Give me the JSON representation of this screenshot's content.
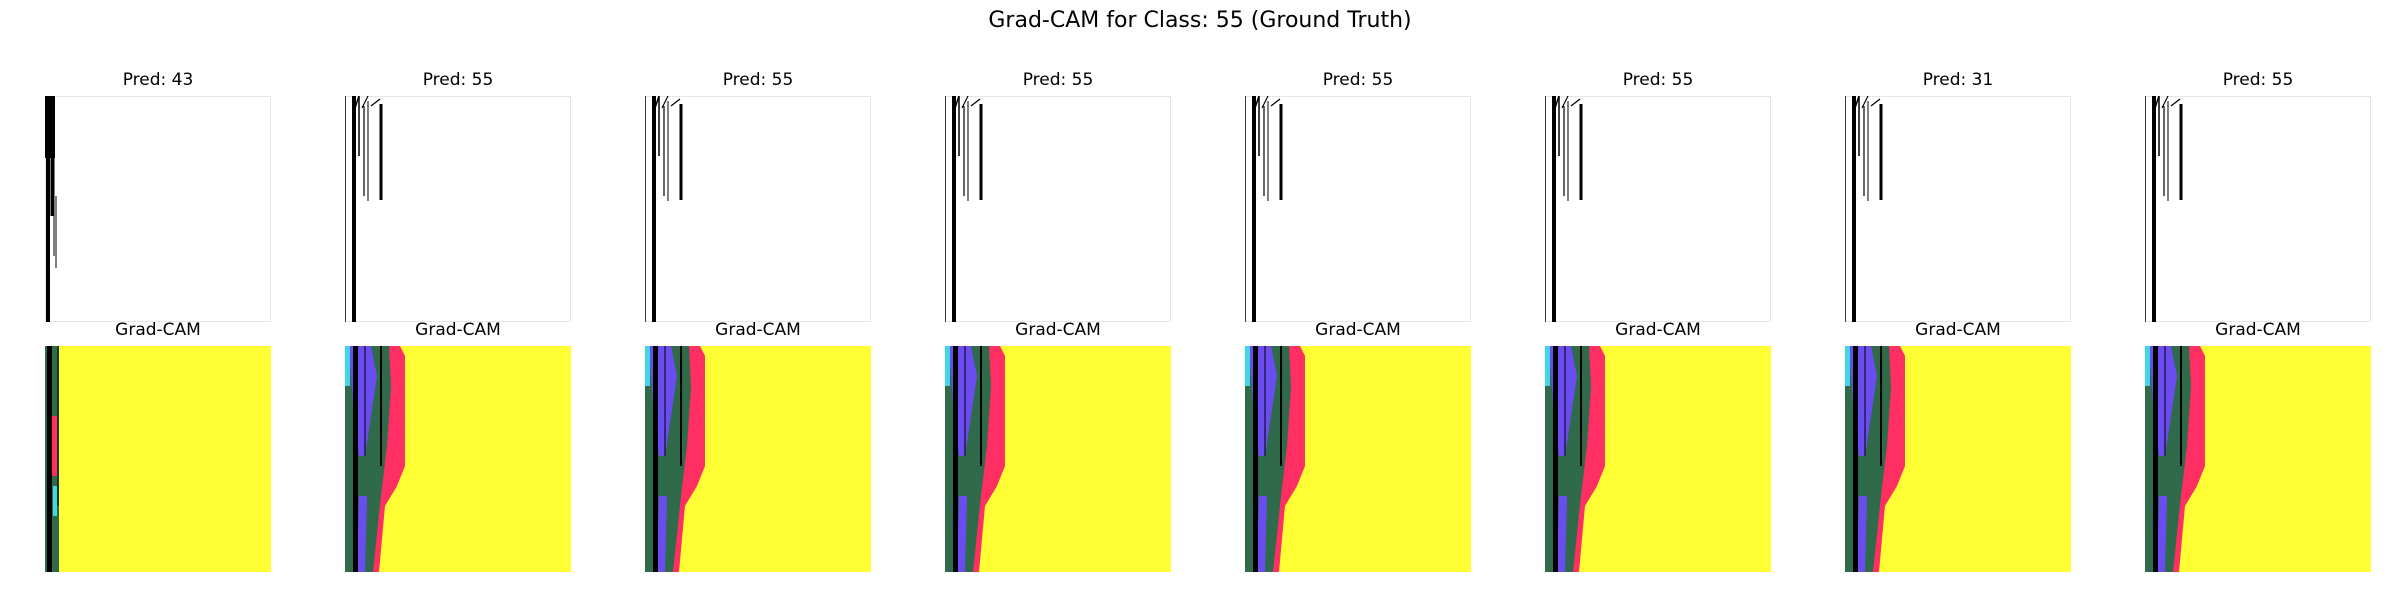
{
  "figure": {
    "title": "Grad-CAM for Class: 55 (Ground Truth)",
    "cam_label": "Grad-CAM"
  },
  "colors": {
    "background": "#ffffff",
    "cam_yellow": "#ffff33",
    "cam_pink": "#ff2e63",
    "cam_green": "#2f6b4a",
    "cam_violet": "#6a4cf0",
    "cam_cyan": "#40d6e6",
    "ink": "#000000"
  },
  "samples": [
    {
      "pred_label": "Pred: 43"
    },
    {
      "pred_label": "Pred: 55"
    },
    {
      "pred_label": "Pred: 55"
    },
    {
      "pred_label": "Pred: 55"
    },
    {
      "pred_label": "Pred: 55"
    },
    {
      "pred_label": "Pred: 55"
    },
    {
      "pred_label": "Pred: 31"
    },
    {
      "pred_label": "Pred: 55"
    }
  ]
}
